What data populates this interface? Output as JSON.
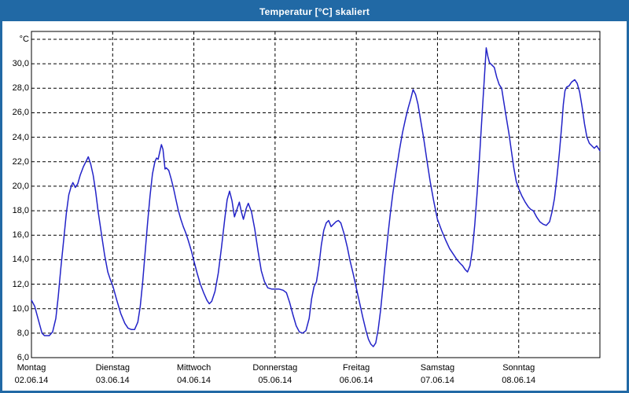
{
  "window": {
    "title": "Temperatur [°C] skaliert"
  },
  "colors": {
    "titlebar": "#2169a5",
    "line": "#2323c8",
    "grid": "#000000",
    "background": "#ffffff"
  },
  "chart_data": {
    "type": "line",
    "title": "Temperatur [°C] skaliert",
    "ylabel": "°C",
    "ylim": [
      6,
      32.6
    ],
    "grid": "dashed",
    "legend_position": "none",
    "y_ticks": [
      {
        "value": 32,
        "label": "°C"
      },
      {
        "value": 30,
        "label": "30,0"
      },
      {
        "value": 28,
        "label": "28,0"
      },
      {
        "value": 26,
        "label": "26,0"
      },
      {
        "value": 24,
        "label": "24,0"
      },
      {
        "value": 22,
        "label": "22,0"
      },
      {
        "value": 20,
        "label": "20,0"
      },
      {
        "value": 18,
        "label": "18,0"
      },
      {
        "value": 16,
        "label": "16,0"
      },
      {
        "value": 14,
        "label": "14,0"
      },
      {
        "value": 12,
        "label": "12,0"
      },
      {
        "value": 10,
        "label": "10,0"
      },
      {
        "value": 8,
        "label": "8,0"
      },
      {
        "value": 6,
        "label": "6,0"
      }
    ],
    "x_days": [
      {
        "name": "Montag",
        "date": "02.06.14"
      },
      {
        "name": "Dienstag",
        "date": "03.06.14"
      },
      {
        "name": "Mittwoch",
        "date": "04.06.14"
      },
      {
        "name": "Donnerstag",
        "date": "05.06.14"
      },
      {
        "name": "Freitag",
        "date": "06.06.14"
      },
      {
        "name": "Samstag",
        "date": "07.06.14"
      },
      {
        "name": "Sonntag",
        "date": "08.06.14"
      }
    ],
    "series": [
      {
        "name": "Temperatur [°C] skaliert",
        "color": "#2323c8",
        "points": [
          [
            0.0,
            10.7
          ],
          [
            0.04,
            10.2
          ],
          [
            0.08,
            9.2
          ],
          [
            0.13,
            8.0
          ],
          [
            0.16,
            7.8
          ],
          [
            0.22,
            7.8
          ],
          [
            0.26,
            8.1
          ],
          [
            0.3,
            9.2
          ],
          [
            0.33,
            11.0
          ],
          [
            0.36,
            13.2
          ],
          [
            0.4,
            15.8
          ],
          [
            0.43,
            17.8
          ],
          [
            0.46,
            19.3
          ],
          [
            0.49,
            20.0
          ],
          [
            0.51,
            20.3
          ],
          [
            0.54,
            19.9
          ],
          [
            0.57,
            20.2
          ],
          [
            0.6,
            20.9
          ],
          [
            0.64,
            21.6
          ],
          [
            0.67,
            22.0
          ],
          [
            0.7,
            22.4
          ],
          [
            0.73,
            21.8
          ],
          [
            0.76,
            20.9
          ],
          [
            0.79,
            19.6
          ],
          [
            0.82,
            18.0
          ],
          [
            0.86,
            16.2
          ],
          [
            0.9,
            14.4
          ],
          [
            0.94,
            13.0
          ],
          [
            0.97,
            12.4
          ],
          [
            1.0,
            11.9
          ],
          [
            1.05,
            10.7
          ],
          [
            1.1,
            9.6
          ],
          [
            1.15,
            8.8
          ],
          [
            1.19,
            8.4
          ],
          [
            1.23,
            8.3
          ],
          [
            1.27,
            8.3
          ],
          [
            1.31,
            8.9
          ],
          [
            1.34,
            10.2
          ],
          [
            1.37,
            12.2
          ],
          [
            1.4,
            14.6
          ],
          [
            1.43,
            17.0
          ],
          [
            1.46,
            19.2
          ],
          [
            1.49,
            21.0
          ],
          [
            1.52,
            22.0
          ],
          [
            1.54,
            22.3
          ],
          [
            1.56,
            22.2
          ],
          [
            1.58,
            22.8
          ],
          [
            1.6,
            23.4
          ],
          [
            1.62,
            23.0
          ],
          [
            1.645,
            21.4
          ],
          [
            1.66,
            21.5
          ],
          [
            1.69,
            21.3
          ],
          [
            1.72,
            20.6
          ],
          [
            1.75,
            19.8
          ],
          [
            1.78,
            18.9
          ],
          [
            1.81,
            18.0
          ],
          [
            1.84,
            17.3
          ],
          [
            1.87,
            16.7
          ],
          [
            1.9,
            16.2
          ],
          [
            1.93,
            15.6
          ],
          [
            1.97,
            14.7
          ],
          [
            2.0,
            13.9
          ],
          [
            2.04,
            12.9
          ],
          [
            2.08,
            12.0
          ],
          [
            2.12,
            11.3
          ],
          [
            2.16,
            10.7
          ],
          [
            2.19,
            10.4
          ],
          [
            2.22,
            10.6
          ],
          [
            2.26,
            11.4
          ],
          [
            2.3,
            12.9
          ],
          [
            2.34,
            15.0
          ],
          [
            2.38,
            17.3
          ],
          [
            2.41,
            18.9
          ],
          [
            2.44,
            19.6
          ],
          [
            2.47,
            18.8
          ],
          [
            2.5,
            17.5
          ],
          [
            2.53,
            18.1
          ],
          [
            2.56,
            18.7
          ],
          [
            2.585,
            17.9
          ],
          [
            2.61,
            17.3
          ],
          [
            2.645,
            18.2
          ],
          [
            2.67,
            18.6
          ],
          [
            2.71,
            17.9
          ],
          [
            2.75,
            16.5
          ],
          [
            2.79,
            14.7
          ],
          [
            2.83,
            13.1
          ],
          [
            2.87,
            12.2
          ],
          [
            2.91,
            11.7
          ],
          [
            2.96,
            11.6
          ],
          [
            3.0,
            11.6
          ],
          [
            3.05,
            11.6
          ],
          [
            3.1,
            11.5
          ],
          [
            3.14,
            11.3
          ],
          [
            3.18,
            10.5
          ],
          [
            3.22,
            9.5
          ],
          [
            3.26,
            8.6
          ],
          [
            3.3,
            8.1
          ],
          [
            3.34,
            8.0
          ],
          [
            3.38,
            8.2
          ],
          [
            3.42,
            9.2
          ],
          [
            3.45,
            10.8
          ],
          [
            3.48,
            11.8
          ],
          [
            3.51,
            12.2
          ],
          [
            3.54,
            13.5
          ],
          [
            3.57,
            15.2
          ],
          [
            3.6,
            16.4
          ],
          [
            3.63,
            17.0
          ],
          [
            3.66,
            17.2
          ],
          [
            3.69,
            16.7
          ],
          [
            3.72,
            16.9
          ],
          [
            3.75,
            17.1
          ],
          [
            3.78,
            17.2
          ],
          [
            3.81,
            17.0
          ],
          [
            3.85,
            16.1
          ],
          [
            3.89,
            15.0
          ],
          [
            3.92,
            14.0
          ],
          [
            3.96,
            12.9
          ],
          [
            4.0,
            11.7
          ],
          [
            4.04,
            10.5
          ],
          [
            4.08,
            9.3
          ],
          [
            4.12,
            8.2
          ],
          [
            4.15,
            7.5
          ],
          [
            4.18,
            7.1
          ],
          [
            4.21,
            6.9
          ],
          [
            4.24,
            7.2
          ],
          [
            4.27,
            8.3
          ],
          [
            4.3,
            9.9
          ],
          [
            4.33,
            11.9
          ],
          [
            4.36,
            14.0
          ],
          [
            4.39,
            16.0
          ],
          [
            4.42,
            17.8
          ],
          [
            4.45,
            19.4
          ],
          [
            4.49,
            21.2
          ],
          [
            4.53,
            22.9
          ],
          [
            4.57,
            24.4
          ],
          [
            4.61,
            25.6
          ],
          [
            4.64,
            26.4
          ],
          [
            4.67,
            27.1
          ],
          [
            4.7,
            27.9
          ],
          [
            4.73,
            27.5
          ],
          [
            4.76,
            26.7
          ],
          [
            4.79,
            25.5
          ],
          [
            4.83,
            23.9
          ],
          [
            4.87,
            22.1
          ],
          [
            4.91,
            20.4
          ],
          [
            4.95,
            18.9
          ],
          [
            4.98,
            17.9
          ],
          [
            5.0,
            17.3
          ],
          [
            5.05,
            16.4
          ],
          [
            5.1,
            15.6
          ],
          [
            5.15,
            14.9
          ],
          [
            5.2,
            14.4
          ],
          [
            5.24,
            14.0
          ],
          [
            5.28,
            13.7
          ],
          [
            5.31,
            13.5
          ],
          [
            5.34,
            13.2
          ],
          [
            5.37,
            13.0
          ],
          [
            5.4,
            13.5
          ],
          [
            5.43,
            14.8
          ],
          [
            5.46,
            16.9
          ],
          [
            5.49,
            19.6
          ],
          [
            5.52,
            22.6
          ],
          [
            5.55,
            25.9
          ],
          [
            5.575,
            28.6
          ],
          [
            5.6,
            31.3
          ],
          [
            5.62,
            30.6
          ],
          [
            5.64,
            30.1
          ],
          [
            5.67,
            29.9
          ],
          [
            5.7,
            29.7
          ],
          [
            5.73,
            28.9
          ],
          [
            5.76,
            28.3
          ],
          [
            5.79,
            28.0
          ],
          [
            5.84,
            25.9
          ],
          [
            5.88,
            24.3
          ],
          [
            5.91,
            22.9
          ],
          [
            5.94,
            21.5
          ],
          [
            5.97,
            20.4
          ],
          [
            6.0,
            19.8
          ],
          [
            6.04,
            19.2
          ],
          [
            6.08,
            18.7
          ],
          [
            6.12,
            18.3
          ],
          [
            6.15,
            18.1
          ],
          [
            6.18,
            18.0
          ],
          [
            6.22,
            17.5
          ],
          [
            6.26,
            17.1
          ],
          [
            6.3,
            16.9
          ],
          [
            6.34,
            16.8
          ],
          [
            6.38,
            17.1
          ],
          [
            6.41,
            17.9
          ],
          [
            6.44,
            19.0
          ],
          [
            6.47,
            20.7
          ],
          [
            6.5,
            22.7
          ],
          [
            6.53,
            25.0
          ],
          [
            6.55,
            26.7
          ],
          [
            6.57,
            27.8
          ],
          [
            6.59,
            28.1
          ],
          [
            6.62,
            28.2
          ],
          [
            6.65,
            28.5
          ],
          [
            6.69,
            28.7
          ],
          [
            6.72,
            28.4
          ],
          [
            6.75,
            27.7
          ],
          [
            6.78,
            26.5
          ],
          [
            6.81,
            25.1
          ],
          [
            6.84,
            24.0
          ],
          [
            6.87,
            23.5
          ],
          [
            6.9,
            23.3
          ],
          [
            6.93,
            23.1
          ],
          [
            6.96,
            23.3
          ],
          [
            7.0,
            22.9
          ]
        ]
      }
    ]
  }
}
